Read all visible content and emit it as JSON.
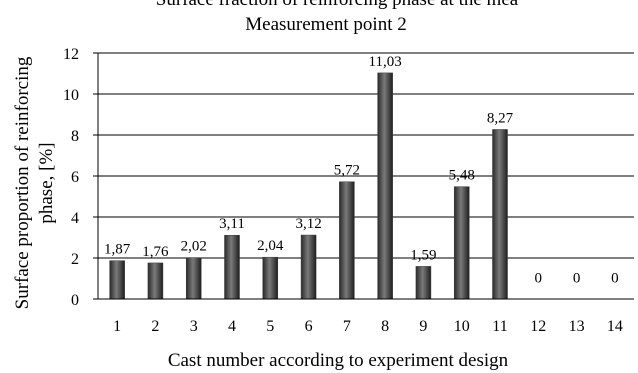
{
  "chart_data": {
    "type": "bar",
    "title": "Measurement point 2",
    "title_clipped": "Surface fraction of reinforcing phase at the mea",
    "xlabel": "Cast number according to experiment design",
    "ylabel": [
      "Surface proportion of reinforcing",
      "phase, [%]"
    ],
    "categories": [
      "1",
      "2",
      "3",
      "4",
      "5",
      "6",
      "7",
      "8",
      "9",
      "10",
      "11",
      "12",
      "13",
      "14"
    ],
    "values": [
      1.87,
      1.76,
      2.02,
      3.11,
      2.04,
      3.12,
      5.72,
      11.03,
      1.59,
      5.48,
      8.27,
      0,
      0,
      0
    ],
    "value_labels": [
      "1,87",
      "1,76",
      "2,02",
      "3,11",
      "2,04",
      "3,12",
      "5,72",
      "11,03",
      "1,59",
      "5,48",
      "8,27",
      "0",
      "0",
      "0"
    ],
    "y_ticks": [
      "0",
      "2",
      "4",
      "6",
      "8",
      "10",
      "12"
    ],
    "ylim": [
      0,
      12
    ],
    "grid": true,
    "legend": "none",
    "bar_color": "#3c3c3c"
  }
}
